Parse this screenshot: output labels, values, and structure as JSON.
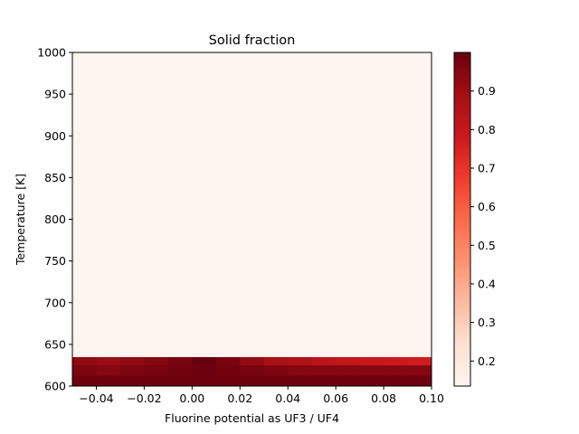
{
  "chart_data": {
    "type": "heatmap",
    "title": "Solid fraction",
    "xlabel": "Fluorine potential as UF3 / UF4",
    "ylabel": "Temperature [K]",
    "xlim": [
      -0.05,
      0.1
    ],
    "ylim": [
      600,
      1000
    ],
    "xticks": [
      -0.04,
      -0.02,
      0.0,
      0.02,
      0.04,
      0.06,
      0.08,
      0.1
    ],
    "xtick_labels": [
      "−0.04",
      "−0.02",
      "0.00",
      "0.02",
      "0.04",
      "0.06",
      "0.08",
      "0.10"
    ],
    "yticks": [
      600,
      650,
      700,
      750,
      800,
      850,
      900,
      950,
      1000
    ],
    "ytick_labels": [
      "600",
      "650",
      "700",
      "750",
      "800",
      "850",
      "900",
      "950",
      "1000"
    ],
    "colormap": "Reds",
    "colorbar": {
      "range": [
        0.135,
        1.0
      ],
      "ticks": [
        0.2,
        0.3,
        0.4,
        0.5,
        0.6,
        0.7,
        0.8,
        0.9
      ],
      "tick_labels": [
        "0.2",
        "0.3",
        "0.4",
        "0.5",
        "0.6",
        "0.7",
        "0.8",
        "0.9"
      ]
    },
    "x_centers": [
      -0.045,
      -0.035,
      -0.025,
      -0.015,
      -0.005,
      0.005,
      0.015,
      0.025,
      0.035,
      0.045,
      0.055,
      0.065,
      0.075,
      0.085,
      0.095
    ],
    "bands": [
      {
        "t_range": [
          600,
          612.5
        ],
        "values": [
          0.99,
          0.99,
          0.99,
          0.99,
          0.99,
          0.99,
          0.99,
          0.99,
          0.99,
          0.99,
          0.99,
          0.99,
          0.99,
          0.99,
          0.99
        ]
      },
      {
        "t_range": [
          612.5,
          625
        ],
        "values": [
          0.96,
          0.95,
          0.96,
          0.97,
          0.98,
          0.99,
          0.98,
          0.97,
          0.96,
          0.95,
          0.95,
          0.95,
          0.95,
          0.95,
          0.95
        ]
      },
      {
        "t_range": [
          625,
          635
        ],
        "values": [
          0.93,
          0.91,
          0.93,
          0.95,
          0.97,
          1.0,
          0.97,
          0.92,
          0.88,
          0.86,
          0.83,
          0.81,
          0.8,
          0.78,
          0.77
        ]
      },
      {
        "t_range": [
          635,
          1000
        ],
        "values": [
          0.135,
          0.135,
          0.135,
          0.135,
          0.135,
          0.135,
          0.135,
          0.135,
          0.135,
          0.135,
          0.135,
          0.135,
          0.135,
          0.135,
          0.135
        ]
      }
    ],
    "grid": false
  }
}
